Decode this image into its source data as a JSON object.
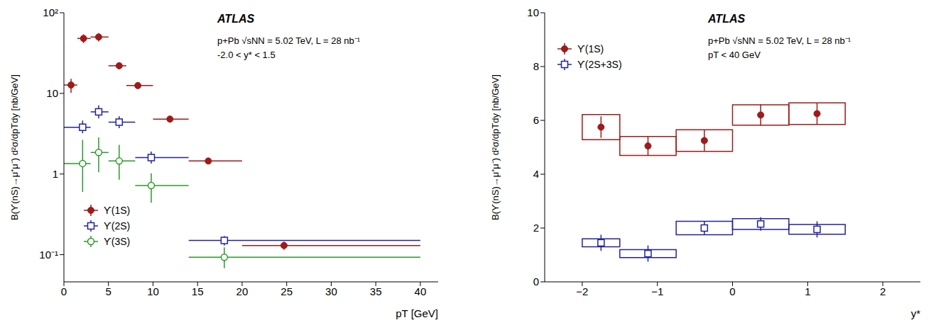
{
  "chart_data": [
    {
      "type": "scatter",
      "log": "y",
      "annotations": [
        "ATLAS",
        "p+Pb √sNN = 5.02 TeV, L = 28 nb⁻¹",
        "-2.0 < y* < 1.5"
      ],
      "x_label": "pT [GeV]",
      "y_label": "B(ϒ(nS)→μ⁺μ⁻) d²σ/dpTdy [nb/GeV]",
      "xlim": [
        0,
        42
      ],
      "xticks": [
        0,
        5,
        10,
        15,
        20,
        25,
        30,
        35,
        40
      ],
      "ylim": [
        0.046,
        100
      ],
      "yticks": [
        {
          "value": 0.1,
          "label": "10⁻¹"
        },
        1,
        10,
        {
          "value": 100,
          "label": "10²"
        }
      ],
      "legend": "lower left",
      "series": [
        {
          "name": "ϒ(1S)",
          "color": "#9e1b1b",
          "marker": "circle_filled",
          "x": [
            0.8,
            2.2,
            3.9,
            6.2,
            8.3,
            11.9,
            16.2,
            24.7
          ],
          "values": [
            12.7,
            48,
            50,
            22,
            12.5,
            4.8,
            1.45,
            0.13
          ],
          "bins": [
            0,
            1.5,
            3,
            5,
            7,
            10,
            14,
            20,
            40
          ],
          "y_err": [
            [
              2.5,
              2.5
            ],
            [
              6,
              6
            ],
            [
              6,
              6
            ],
            [
              2,
              2
            ],
            [
              1.2,
              1.2
            ],
            [
              0.4,
              0.4
            ],
            [
              0.12,
              0.12
            ],
            [
              0.015,
              0.015
            ]
          ]
        },
        {
          "name": "ϒ(2S)",
          "color": "#2323a0",
          "marker": "square_open",
          "x": [
            2.1,
            3.9,
            6.2,
            9.8,
            18
          ],
          "values": [
            3.8,
            5.9,
            4.4,
            1.6,
            0.15
          ],
          "bins": [
            0,
            3,
            5,
            8,
            14,
            40
          ],
          "y_err": [
            [
              0.6,
              0.8
            ],
            [
              1,
              1.2
            ],
            [
              0.7,
              0.8
            ],
            [
              0.25,
              0.3
            ],
            [
              0.02,
              0.02
            ]
          ]
        },
        {
          "name": "ϒ(3S)",
          "color": "#2a9a2a",
          "marker": "circle_open",
          "x": [
            2.1,
            3.9,
            6.2,
            9.8,
            18
          ],
          "values": [
            1.35,
            1.85,
            1.45,
            0.72,
            0.093
          ],
          "bins": [
            0,
            3,
            5,
            8,
            14,
            40
          ],
          "y_err": [
            [
              0.75,
              1.3
            ],
            [
              0.8,
              1.0
            ],
            [
              0.6,
              0.85
            ],
            [
              0.28,
              0.3
            ],
            [
              0.025,
              0.03
            ]
          ]
        }
      ]
    },
    {
      "type": "scatter",
      "annotations": [
        "ATLAS",
        "p+Pb √sNN = 5.02 TeV, L = 28 nb⁻¹",
        "pT < 40 GeV"
      ],
      "x_label": "y*",
      "y_label": "B(ϒ(nS)→μ⁺μ⁻) d²σ/dpTdy [nb/GeV]",
      "xlim": [
        -2.5,
        2.5
      ],
      "xticks": [
        {
          "value": -2,
          "label": "−2"
        },
        {
          "value": -1,
          "label": "−1"
        },
        0,
        1,
        2
      ],
      "ylim": [
        0,
        10
      ],
      "yticks": [
        0,
        2,
        4,
        6,
        8,
        10
      ],
      "legend": "upper left",
      "series": [
        {
          "name": "ϒ(1S)",
          "color": "#9e1b1b",
          "marker": "circle_filled",
          "x": [
            -1.75,
            -1.125,
            -0.375,
            0.375,
            1.125
          ],
          "values": [
            5.75,
            5.05,
            5.25,
            6.2,
            6.25
          ],
          "bins": [
            -2,
            -1.5,
            -0.75,
            0,
            0.75,
            1.5
          ],
          "y_err": [
            0.4,
            0.35,
            0.4,
            0.4,
            0.4
          ],
          "sys_err": [
            0.47,
            0.35,
            0.4,
            0.38,
            0.4
          ]
        },
        {
          "name": "ϒ(2S+3S)",
          "color": "#2323a0",
          "marker": "square_open",
          "x": [
            -1.75,
            -1.125,
            -0.375,
            0.375,
            1.125
          ],
          "values": [
            1.45,
            1.05,
            2.0,
            2.15,
            1.95
          ],
          "bins": [
            -2,
            -1.5,
            -0.75,
            0,
            0.75,
            1.5
          ],
          "y_err": [
            0.3,
            0.3,
            0.25,
            0.25,
            0.3
          ],
          "sys_err": [
            0.15,
            0.15,
            0.25,
            0.2,
            0.18
          ]
        }
      ]
    }
  ]
}
